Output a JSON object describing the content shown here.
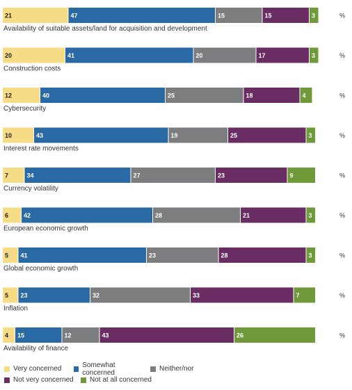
{
  "chart_data": {
    "type": "bar",
    "orientation": "horizontal",
    "stacked": true,
    "unit": "%",
    "categories": [
      "Availability of suitable assets/land for acquisition and development",
      "Construction costs",
      "Cybersecurity",
      "Interest rate movements",
      "Currency volatility",
      "European economic growth",
      "Global economic growth",
      "Inflation",
      "Availability of finance"
    ],
    "series": [
      {
        "name": "Very concerned",
        "color": "#f6dc86",
        "text_color": "#222222",
        "values": [
          21,
          20,
          12,
          10,
          7,
          6,
          5,
          5,
          4
        ]
      },
      {
        "name": "Somewhat concerned",
        "color": "#2a6aa4",
        "text_color": "#ffffff",
        "values": [
          47,
          41,
          40,
          43,
          34,
          42,
          41,
          23,
          15
        ]
      },
      {
        "name": "Neither/nor",
        "color": "#7b7d7f",
        "text_color": "#ffffff",
        "values": [
          15,
          20,
          25,
          19,
          27,
          28,
          23,
          32,
          12
        ]
      },
      {
        "name": "Not very concerned",
        "color": "#6a2d63",
        "text_color": "#ffffff",
        "values": [
          15,
          17,
          18,
          25,
          23,
          21,
          28,
          33,
          43
        ]
      },
      {
        "name": "Not at all concerned",
        "color": "#6f9a3a",
        "text_color": "#ffffff",
        "values": [
          3,
          3,
          4,
          3,
          9,
          3,
          3,
          7,
          26
        ]
      }
    ],
    "legend_position": "bottom-left",
    "grid": false
  }
}
